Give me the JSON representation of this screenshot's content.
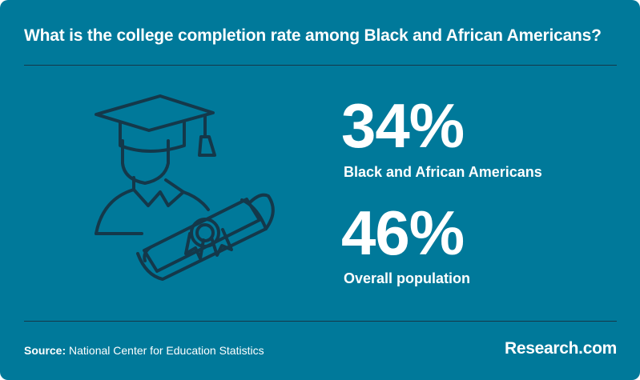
{
  "title": "What is the college completion rate among Black and African Americans?",
  "stats": [
    {
      "value": "34%",
      "label": "Black and African Americans"
    },
    {
      "value": "46%",
      "label": "Overall population"
    }
  ],
  "footer": {
    "source_label": "Source:",
    "source_text": "National Center for Education Statistics",
    "brand": "Research.com"
  },
  "colors": {
    "background": "#00799a",
    "illustration_stroke": "#14384a",
    "text": "#ffffff"
  },
  "icons": [
    "graduate-icon",
    "diploma-scroll-icon"
  ]
}
